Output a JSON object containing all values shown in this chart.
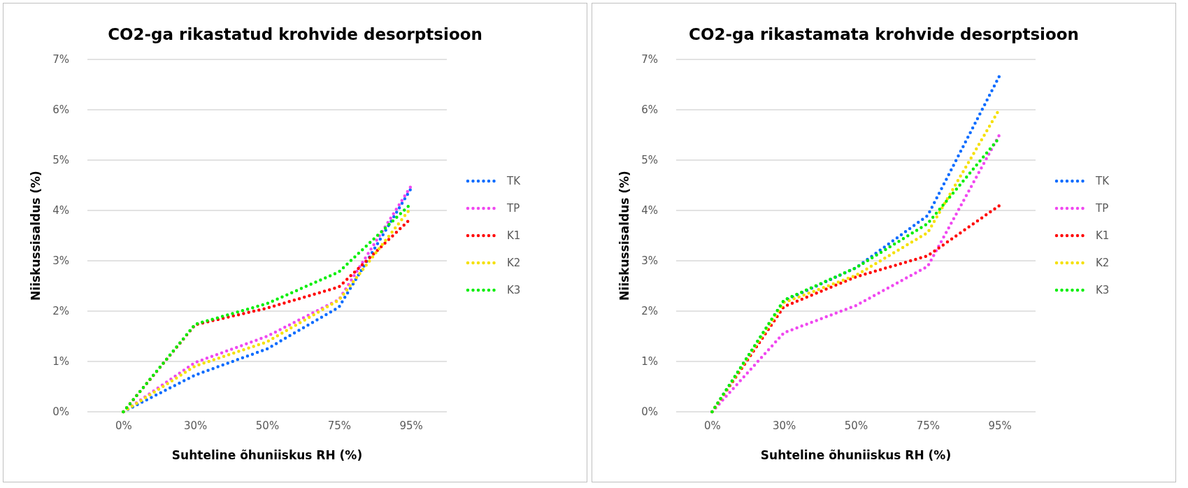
{
  "chart_data": [
    {
      "type": "line",
      "title": "CO2-ga rikastatud krohvide desorptsioon",
      "xlabel": "Suhteline õhuniiskus RH (%)",
      "ylabel": "Niiskussisaldus (%)",
      "categories": [
        "0%",
        "30%",
        "50%",
        "75%",
        "95%"
      ],
      "ylim": [
        0,
        7
      ],
      "yticks": [
        {
          "value": 0,
          "label": "0%"
        },
        {
          "value": 1,
          "label": "1%"
        },
        {
          "value": 2,
          "label": "2%"
        },
        {
          "value": 3,
          "label": "3%"
        },
        {
          "value": 4,
          "label": "4%"
        },
        {
          "value": 5,
          "label": "5%"
        },
        {
          "value": 6,
          "label": "6%"
        },
        {
          "value": 7,
          "label": "7%"
        }
      ],
      "grid": "y",
      "legend": "right",
      "marker": "none",
      "line_style": "dotted",
      "series": [
        {
          "name": "TK",
          "color": "#0a6cff",
          "values": [
            0,
            0.73,
            1.25,
            2.08,
            4.43
          ]
        },
        {
          "name": "TP",
          "color": "#f048f0",
          "values": [
            0,
            0.98,
            1.5,
            2.23,
            4.48
          ]
        },
        {
          "name": "K1",
          "color": "#ff0000",
          "values": [
            0,
            1.73,
            2.06,
            2.48,
            3.84
          ]
        },
        {
          "name": "K2",
          "color": "#f5e000",
          "values": [
            0,
            0.91,
            1.39,
            2.22,
            4.05
          ]
        },
        {
          "name": "K3",
          "color": "#00ee00",
          "values": [
            0,
            1.74,
            2.15,
            2.78,
            4.13
          ]
        }
      ]
    },
    {
      "type": "line",
      "title": "CO2-ga rikastamata krohvide desorptsioon",
      "xlabel": "Suhteline õhuniiskus RH (%)",
      "ylabel": "Niiskussisaldus (%)",
      "categories": [
        "0%",
        "30%",
        "50%",
        "75%",
        "95%"
      ],
      "ylim": [
        0,
        7
      ],
      "yticks": [
        {
          "value": 0,
          "label": "0%"
        },
        {
          "value": 1,
          "label": "1%"
        },
        {
          "value": 2,
          "label": "2%"
        },
        {
          "value": 3,
          "label": "3%"
        },
        {
          "value": 4,
          "label": "4%"
        },
        {
          "value": 5,
          "label": "5%"
        },
        {
          "value": 6,
          "label": "6%"
        },
        {
          "value": 7,
          "label": "7%"
        }
      ],
      "grid": "y",
      "legend": "right",
      "marker": "none",
      "line_style": "dotted",
      "series": [
        {
          "name": "TK",
          "color": "#0a6cff",
          "values": [
            0,
            2.2,
            2.86,
            3.9,
            6.68
          ]
        },
        {
          "name": "TP",
          "color": "#f048f0",
          "values": [
            0,
            1.57,
            2.11,
            2.89,
            5.51
          ]
        },
        {
          "name": "K1",
          "color": "#ff0000",
          "values": [
            0,
            2.09,
            2.68,
            3.1,
            4.1
          ]
        },
        {
          "name": "K2",
          "color": "#f5e000",
          "values": [
            0,
            2.17,
            2.71,
            3.56,
            6.02
          ]
        },
        {
          "name": "K3",
          "color": "#00ee00",
          "values": [
            0,
            2.22,
            2.86,
            3.74,
            5.45
          ]
        }
      ]
    }
  ]
}
